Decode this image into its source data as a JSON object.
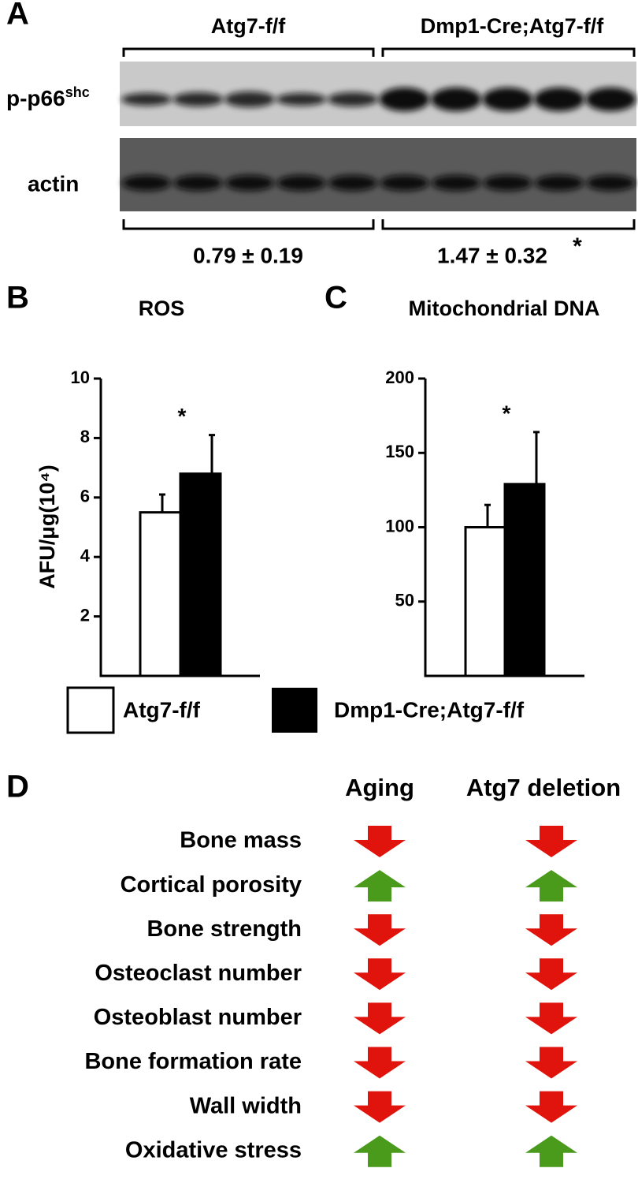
{
  "panels": {
    "a": "A",
    "b": "B",
    "c": "C",
    "d": "D"
  },
  "blot": {
    "groups": [
      "Atg7-f/f",
      "Dmp1-Cre;Atg7-f/f"
    ],
    "rows": [
      {
        "label": "p-p66",
        "sup": "shc"
      },
      {
        "label": "actin"
      }
    ],
    "ratios": [
      "0.79 ± 0.19",
      "1.47 ± 0.32"
    ],
    "significance": "*"
  },
  "chart_data": [
    {
      "type": "bar",
      "title": "ROS",
      "ylabel": "AFU/μg(10⁴)",
      "categories": [
        null
      ],
      "series": [
        {
          "name": "Atg7-f/f",
          "color": "#ffffff",
          "values": [
            5.5
          ],
          "errors": [
            0.6
          ]
        },
        {
          "name": "Dmp1-Cre;Atg7-f/f",
          "color": "#000000",
          "values": [
            6.8
          ],
          "errors": [
            1.3
          ]
        }
      ],
      "annotations": [
        "*"
      ],
      "ylim": [
        0,
        10
      ],
      "yticks": [
        2,
        4,
        6,
        8,
        10
      ]
    },
    {
      "type": "bar",
      "title": "Mitochondrial DNA",
      "categories": [
        null
      ],
      "series": [
        {
          "color": "#ffffff",
          "values": [
            100
          ],
          "errors": [
            15
          ]
        },
        {
          "color": "#000000",
          "values": [
            129
          ],
          "errors": [
            35
          ]
        }
      ],
      "annotations": [
        "*"
      ],
      "ylim": [
        0,
        200
      ],
      "yticks": [
        50,
        100,
        150,
        200
      ]
    }
  ],
  "summary": {
    "columns": [
      "Aging",
      "Atg7 deletion"
    ],
    "up_color": "#4a9a1c",
    "down_color": "#e0140c",
    "rows": [
      {
        "label": "Bone mass",
        "effects": [
          "down",
          "down"
        ]
      },
      {
        "label": "Cortical porosity",
        "effects": [
          "up",
          "up"
        ]
      },
      {
        "label": "Bone strength",
        "effects": [
          "down",
          "down"
        ]
      },
      {
        "label": "Osteoclast number",
        "effects": [
          "down",
          "down"
        ]
      },
      {
        "label": "Osteoblast number",
        "effects": [
          "down",
          "down"
        ]
      },
      {
        "label": "Bone formation rate",
        "effects": [
          "down",
          "down"
        ]
      },
      {
        "label": "Wall width",
        "effects": [
          "down",
          "down"
        ]
      },
      {
        "label": "Oxidative stress",
        "effects": [
          "up",
          "up"
        ]
      }
    ]
  }
}
